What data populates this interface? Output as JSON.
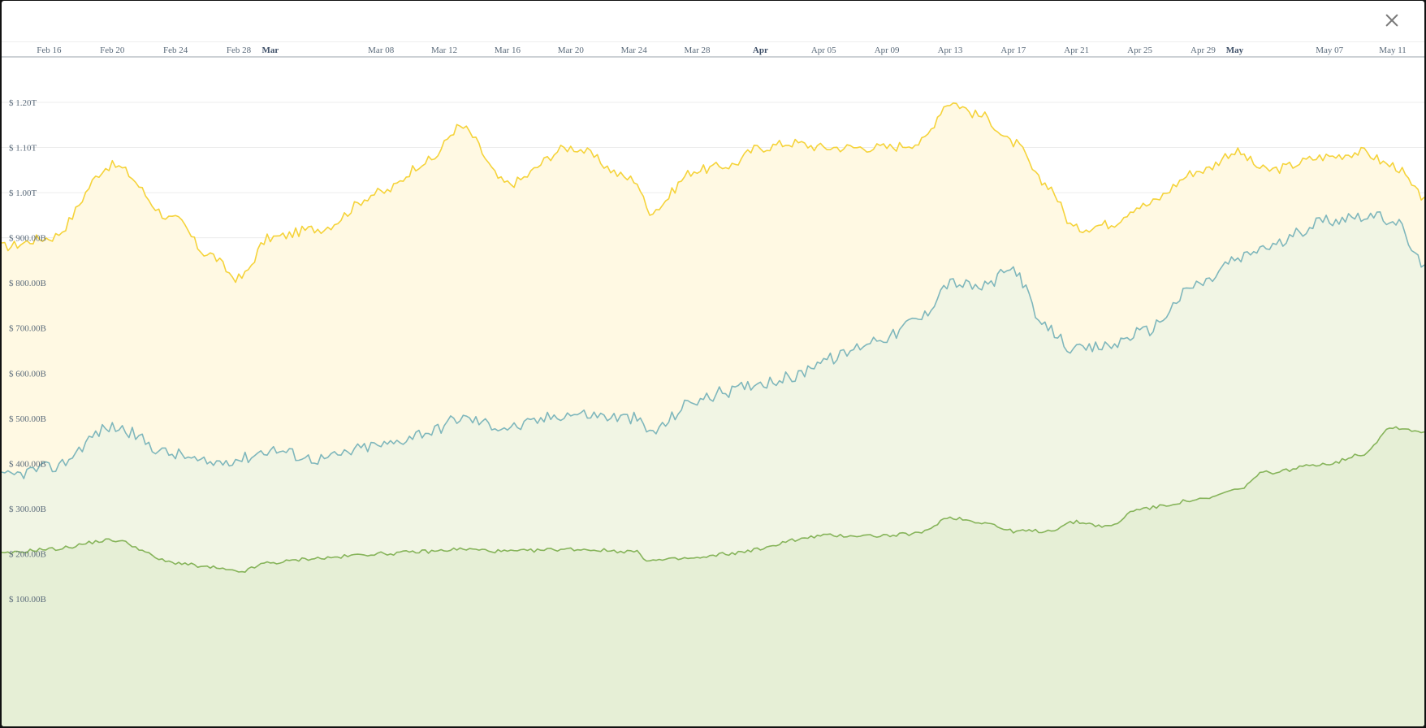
{
  "chart_data": {
    "type": "area",
    "x": [
      "2024-02-13",
      "2024-02-16",
      "2024-02-20",
      "2024-02-24",
      "2024-02-26",
      "2024-02-28",
      "2024-03-01",
      "2024-03-04",
      "2024-03-08",
      "2024-03-11",
      "2024-03-13",
      "2024-03-16",
      "2024-03-20",
      "2024-03-24",
      "2024-03-25",
      "2024-03-28",
      "2024-03-30",
      "2024-04-01",
      "2024-04-03",
      "2024-04-05",
      "2024-04-09",
      "2024-04-11",
      "2024-04-13",
      "2024-04-15",
      "2024-04-17",
      "2024-04-19",
      "2024-04-21",
      "2024-04-23",
      "2024-04-25",
      "2024-04-29",
      "2024-05-01",
      "2024-05-03",
      "2024-05-07",
      "2024-05-09",
      "2024-05-11",
      "2024-05-13"
    ],
    "series": [
      {
        "color": "#f5d33a",
        "fill": "#fff9e3",
        "values": [
          880,
          900,
          1060,
          940,
          865,
          810,
          900,
          920,
          1000,
          1070,
          1145,
          1020,
          1100,
          1030,
          960,
          1050,
          1060,
          1100,
          1110,
          1100,
          1100,
          1110,
          1200,
          1170,
          1110,
          1020,
          920,
          930,
          970,
          1050,
          1090,
          1050,
          1080,
          1090,
          1060,
          990
        ]
      },
      {
        "color": "#7fb7bc",
        "fill": "#f1f5e4",
        "values": [
          370,
          390,
          480,
          420,
          400,
          410,
          430,
          410,
          440,
          470,
          500,
          480,
          510,
          500,
          470,
          540,
          560,
          580,
          590,
          630,
          680,
          720,
          800,
          790,
          830,
          700,
          650,
          660,
          690,
          800,
          850,
          880,
          940,
          950,
          940,
          840
        ]
      },
      {
        "color": "#86b45a",
        "fill": "#e6efd6",
        "values": [
          200,
          210,
          230,
          180,
          170,
          160,
          180,
          190,
          200,
          205,
          210,
          205,
          210,
          205,
          185,
          190,
          200,
          210,
          230,
          240,
          240,
          245,
          280,
          270,
          250,
          250,
          270,
          260,
          300,
          320,
          340,
          380,
          400,
          420,
          480,
          470
        ]
      }
    ],
    "x_ticks": [
      {
        "label": "Feb 16",
        "date": "2024-02-16",
        "major": false
      },
      {
        "label": "Feb 20",
        "date": "2024-02-20",
        "major": false
      },
      {
        "label": "Feb 24",
        "date": "2024-02-24",
        "major": false
      },
      {
        "label": "Feb 28",
        "date": "2024-02-28",
        "major": false
      },
      {
        "label": "Mar",
        "date": "2024-03-01",
        "major": true
      },
      {
        "label": "Mar 08",
        "date": "2024-03-08",
        "major": false
      },
      {
        "label": "Mar 12",
        "date": "2024-03-12",
        "major": false
      },
      {
        "label": "Mar 16",
        "date": "2024-03-16",
        "major": false
      },
      {
        "label": "Mar 20",
        "date": "2024-03-20",
        "major": false
      },
      {
        "label": "Mar 24",
        "date": "2024-03-24",
        "major": false
      },
      {
        "label": "Mar 28",
        "date": "2024-03-28",
        "major": false
      },
      {
        "label": "Apr",
        "date": "2024-04-01",
        "major": true
      },
      {
        "label": "Apr 05",
        "date": "2024-04-05",
        "major": false
      },
      {
        "label": "Apr 09",
        "date": "2024-04-09",
        "major": false
      },
      {
        "label": "Apr 13",
        "date": "2024-04-13",
        "major": false
      },
      {
        "label": "Apr 17",
        "date": "2024-04-17",
        "major": false
      },
      {
        "label": "Apr 21",
        "date": "2024-04-21",
        "major": false
      },
      {
        "label": "Apr 25",
        "date": "2024-04-25",
        "major": false
      },
      {
        "label": "Apr 29",
        "date": "2024-04-29",
        "major": false
      },
      {
        "label": "May",
        "date": "2024-05-01",
        "major": true
      },
      {
        "label": "May 07",
        "date": "2024-05-07",
        "major": false
      },
      {
        "label": "May 11",
        "date": "2024-05-11",
        "major": false
      }
    ],
    "y_ticks": [
      {
        "label": "$ 100.00B",
        "value": 100
      },
      {
        "label": "$ 200.00B",
        "value": 200
      },
      {
        "label": "$ 300.00B",
        "value": 300
      },
      {
        "label": "$ 400.00B",
        "value": 400
      },
      {
        "label": "$ 500.00B",
        "value": 500
      },
      {
        "label": "$ 600.00B",
        "value": 600
      },
      {
        "label": "$ 700.00B",
        "value": 700
      },
      {
        "label": "$ 800.00B",
        "value": 800
      },
      {
        "label": "$ 900.00B",
        "value": 900
      },
      {
        "label": "$ 1.00T",
        "value": 1000
      },
      {
        "label": "$ 1.10T",
        "value": 1100
      },
      {
        "label": "$ 1.20T",
        "value": 1200
      }
    ],
    "xlim": [
      "2024-02-13",
      "2024-05-13"
    ],
    "ylim": [
      0,
      1300
    ],
    "grid": true,
    "legend": "none"
  }
}
